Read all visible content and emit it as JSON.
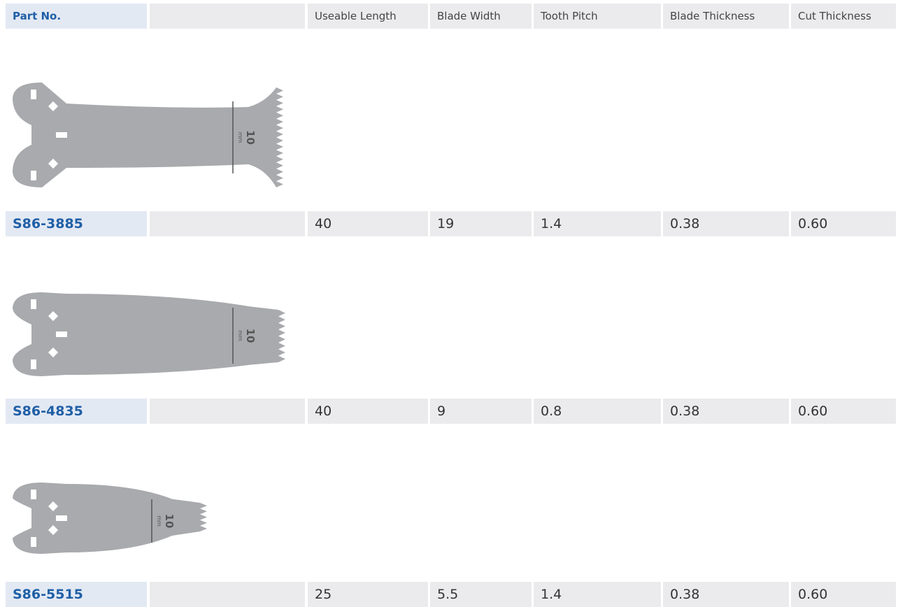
{
  "table": {
    "headers": [
      "Part No.",
      "Useable Length",
      "Blade Width",
      "Tooth Pitch",
      "Blade Thickness",
      "Cut Thickness"
    ],
    "rows": [
      {
        "part_no": "S86-3885",
        "cells": [
          "40",
          "19",
          "1.4",
          "0.38",
          "0.60"
        ],
        "scale": "10",
        "scale_unit": "mm"
      },
      {
        "part_no": "S86-4835",
        "cells": [
          "40",
          "9",
          "0.8",
          "0.38",
          "0.60"
        ],
        "scale": "10",
        "scale_unit": "mm"
      },
      {
        "part_no": "S86-5515",
        "cells": [
          "25",
          "5.5",
          "1.4",
          "0.38",
          "0.60"
        ],
        "scale": "10",
        "scale_unit": "mm"
      }
    ]
  }
}
